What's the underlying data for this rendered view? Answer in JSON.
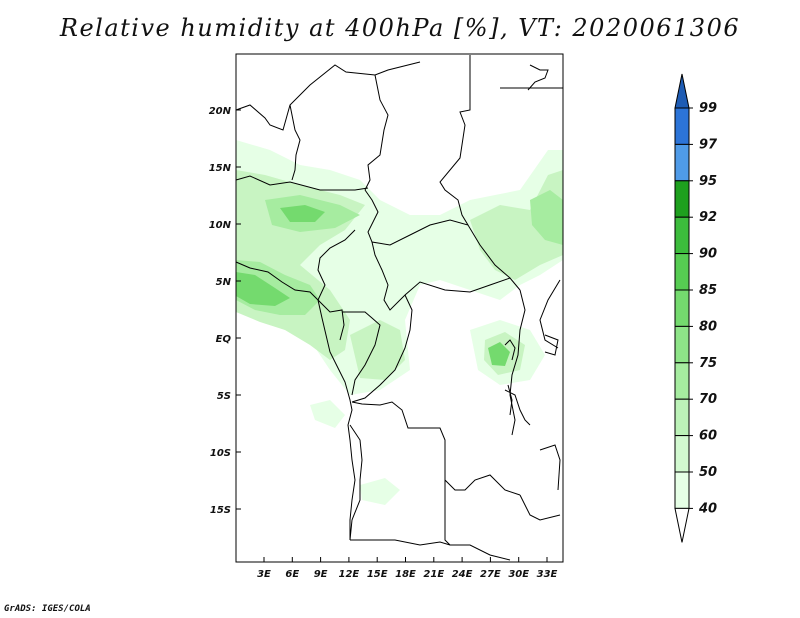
{
  "title": "Relative humidity at 400hPa [%], VT: 2020061306",
  "credit": "GrADS: IGES/COLA",
  "map": {
    "projection": "lat-lon",
    "lon_range": [
      0,
      34
    ],
    "lat_range": [
      -20,
      24.5
    ],
    "lat_labels": [
      "20N",
      "15N",
      "10N",
      "5N",
      "EQ",
      "5S",
      "10S",
      "15S"
    ],
    "lon_labels": [
      "3E",
      "6E",
      "9E",
      "12E",
      "15E",
      "18E",
      "21E",
      "24E",
      "27E",
      "30E",
      "33E"
    ]
  },
  "colorbar": {
    "levels": [
      "40",
      "50",
      "60",
      "70",
      "75",
      "80",
      "85",
      "90",
      "92",
      "95",
      "97",
      "99"
    ],
    "colors": [
      "#ffffff",
      "#e6ffe6",
      "#d2f9d0",
      "#bcf2b8",
      "#a6eca0",
      "#8ee488",
      "#74da6e",
      "#56cc52",
      "#3cbc3c",
      "#1ea01e",
      "#4f9be8",
      "#2c74d8",
      "#1e5cb4"
    ]
  }
}
